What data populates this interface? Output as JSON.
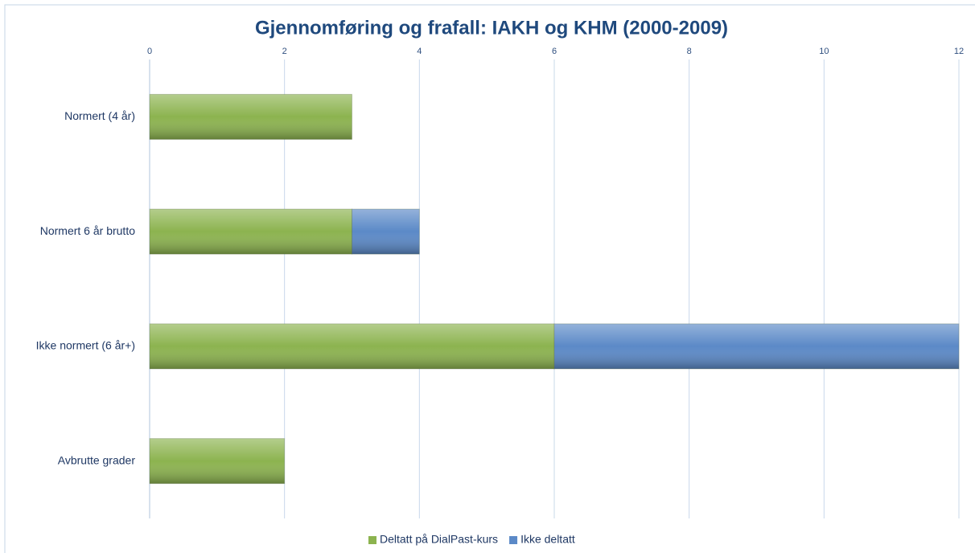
{
  "chart_data": {
    "type": "stacked_bar_horizontal",
    "title": "Gjennomføring og frafall: IAKH og KHM (2000-2009)",
    "categories": [
      "Normert (4 år)",
      "Normert 6 år brutto",
      "Ikke normert (6 år+)",
      "Avbrutte grader"
    ],
    "series": [
      {
        "name": "Deltatt på DialPast-kurs",
        "color": "#8cb34f",
        "values": [
          3,
          3,
          6,
          2
        ]
      },
      {
        "name": "Ikke deltatt",
        "color": "#5b89c7",
        "values": [
          0,
          1,
          6,
          0
        ]
      }
    ],
    "xlim": [
      0,
      12
    ],
    "xticks": [
      0,
      2,
      4,
      6,
      8,
      10,
      12
    ],
    "grid": true,
    "legend": "bottom"
  }
}
